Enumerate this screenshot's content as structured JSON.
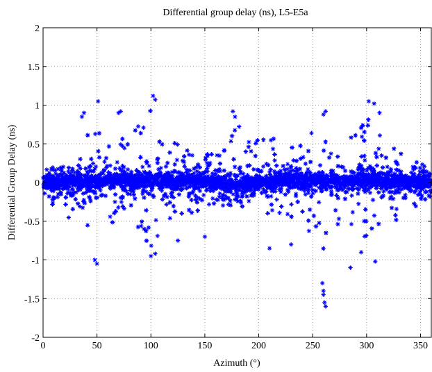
{
  "chart_data": {
    "type": "scatter",
    "title": "Differential group delay (ns), L5-E5a",
    "xlabel": "Azimuth (°)",
    "ylabel": "Differential Group Delay (ns)",
    "xlim": [
      0,
      360
    ],
    "ylim": [
      -2,
      2
    ],
    "x_ticks": [
      0,
      50,
      100,
      150,
      200,
      250,
      300,
      350
    ],
    "y_ticks": [
      -2,
      -1.5,
      -1,
      -0.5,
      0,
      0.5,
      1,
      1.5,
      2
    ],
    "x_tick_labels": [
      "0",
      "50",
      "100",
      "150",
      "200",
      "250",
      "300",
      "350"
    ],
    "y_tick_labels": [
      "-2",
      "-1.5",
      "-1",
      "-0.5",
      "0",
      "0.5",
      "1",
      "1.5",
      "2"
    ],
    "grid": true,
    "marker": "asterisk",
    "color": "#0000ff",
    "series": [
      {
        "band_center": [
          [
            0,
            0.0
          ],
          [
            20,
            0.0
          ],
          [
            40,
            0.02
          ],
          [
            60,
            0.03
          ],
          [
            80,
            0.02
          ],
          [
            100,
            0.02
          ],
          [
            120,
            0.02
          ],
          [
            140,
            0.02
          ],
          [
            160,
            0.01
          ],
          [
            180,
            -0.05
          ],
          [
            200,
            0.0
          ],
          [
            220,
            0.03
          ],
          [
            240,
            0.03
          ],
          [
            260,
            0.02
          ],
          [
            280,
            0.02
          ],
          [
            300,
            0.04
          ],
          [
            320,
            0.03
          ],
          [
            340,
            0.01
          ],
          [
            360,
            0.0
          ]
        ],
        "upper_envelope": [
          [
            0,
            0.15
          ],
          [
            10,
            0.2
          ],
          [
            20,
            0.3
          ],
          [
            30,
            0.45
          ],
          [
            40,
            0.6
          ],
          [
            50,
            0.75
          ],
          [
            60,
            0.7
          ],
          [
            70,
            0.75
          ],
          [
            80,
            0.65
          ],
          [
            90,
            0.75
          ],
          [
            100,
            0.95
          ],
          [
            110,
            0.7
          ],
          [
            120,
            0.55
          ],
          [
            130,
            0.45
          ],
          [
            140,
            0.4
          ],
          [
            150,
            0.35
          ],
          [
            160,
            0.5
          ],
          [
            170,
            0.75
          ],
          [
            180,
            0.8
          ],
          [
            190,
            0.55
          ],
          [
            200,
            0.6
          ],
          [
            210,
            0.6
          ],
          [
            220,
            0.55
          ],
          [
            230,
            0.5
          ],
          [
            240,
            0.55
          ],
          [
            250,
            0.65
          ],
          [
            260,
            0.8
          ],
          [
            270,
            0.6
          ],
          [
            280,
            0.55
          ],
          [
            290,
            0.65
          ],
          [
            300,
            0.85
          ],
          [
            310,
            0.75
          ],
          [
            320,
            0.55
          ],
          [
            330,
            0.4
          ],
          [
            340,
            0.35
          ],
          [
            350,
            0.25
          ],
          [
            360,
            0.15
          ]
        ],
        "lower_envelope": [
          [
            0,
            -0.2
          ],
          [
            10,
            -0.35
          ],
          [
            20,
            -0.45
          ],
          [
            30,
            -0.5
          ],
          [
            40,
            -0.6
          ],
          [
            50,
            -0.7
          ],
          [
            60,
            -0.55
          ],
          [
            70,
            -0.5
          ],
          [
            80,
            -0.6
          ],
          [
            90,
            -0.75
          ],
          [
            100,
            -0.85
          ],
          [
            110,
            -0.6
          ],
          [
            120,
            -0.5
          ],
          [
            130,
            -0.45
          ],
          [
            140,
            -0.4
          ],
          [
            150,
            -0.4
          ],
          [
            160,
            -0.35
          ],
          [
            170,
            -0.3
          ],
          [
            180,
            -0.3
          ],
          [
            190,
            -0.35
          ],
          [
            200,
            -0.4
          ],
          [
            210,
            -0.45
          ],
          [
            220,
            -0.5
          ],
          [
            230,
            -0.55
          ],
          [
            240,
            -0.6
          ],
          [
            250,
            -0.75
          ],
          [
            260,
            -0.9
          ],
          [
            270,
            -0.65
          ],
          [
            280,
            -0.6
          ],
          [
            290,
            -0.65
          ],
          [
            300,
            -0.75
          ],
          [
            310,
            -0.7
          ],
          [
            320,
            -0.6
          ],
          [
            330,
            -0.45
          ],
          [
            340,
            -0.4
          ],
          [
            350,
            -0.3
          ],
          [
            360,
            -0.2
          ]
        ],
        "notable_points": [
          [
            51,
            1.05
          ],
          [
            102,
            1.12
          ],
          [
            104,
            1.07
          ],
          [
            176,
            0.92
          ],
          [
            178,
            0.85
          ],
          [
            260,
            0.88
          ],
          [
            262,
            0.92
          ],
          [
            302,
            1.05
          ],
          [
            307,
            1.02
          ],
          [
            312,
            0.9
          ],
          [
            36,
            0.85
          ],
          [
            38,
            0.9
          ],
          [
            70,
            0.9
          ],
          [
            72,
            0.92
          ],
          [
            50,
            -1.05
          ],
          [
            48,
            -1.0
          ],
          [
            100,
            -0.95
          ],
          [
            104,
            -0.92
          ],
          [
            259,
            -1.3
          ],
          [
            260,
            -1.45
          ],
          [
            261,
            -1.55
          ],
          [
            262,
            -1.6
          ],
          [
            260,
            -1.4
          ],
          [
            285,
            -1.1
          ],
          [
            308,
            -1.02
          ],
          [
            295,
            -0.9
          ],
          [
            210,
            -0.85
          ],
          [
            230,
            -0.8
          ],
          [
            125,
            -0.75
          ],
          [
            150,
            -0.7
          ],
          [
            172,
            -0.2
          ],
          [
            178,
            -0.22
          ],
          [
            185,
            -0.18
          ]
        ]
      }
    ]
  }
}
